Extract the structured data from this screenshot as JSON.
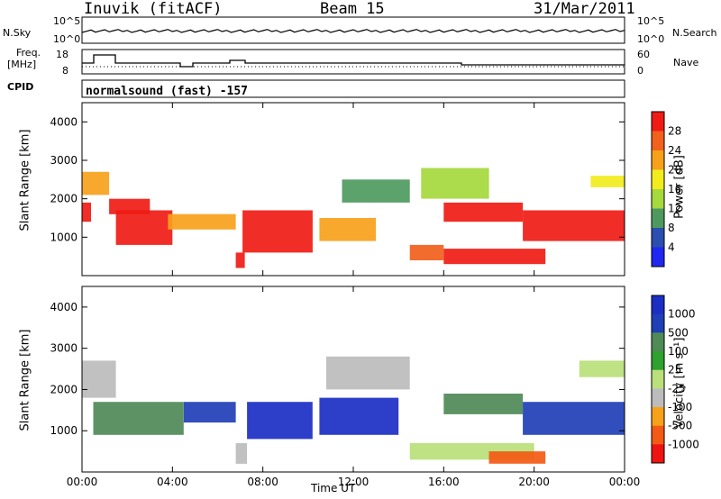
{
  "header": {
    "station": "Inuvik (fitACF)",
    "beam": "Beam 15",
    "date": "31/Mar/2011"
  },
  "top_panels": {
    "nsky_label": "N.Sky",
    "nsearch_label": "N.Search",
    "nsky_ticks": [
      "10^5",
      "10^0"
    ],
    "nsearch_ticks": [
      "10^5",
      "10^0"
    ],
    "freq_label": "Freq.",
    "freq_unit": "[MHz]",
    "freq_ticks": [
      "18",
      "8"
    ],
    "nave_label": "Nave",
    "nave_ticks": [
      "60",
      "0"
    ],
    "cpid_label": "CPID",
    "cpid_text": "normalsound (fast) -157"
  },
  "colors": {
    "power": [
      "#1e28f0",
      "#2a4fb0",
      "#4e9a5e",
      "#a5d93c",
      "#f2ec1e",
      "#f7a11a",
      "#f1601c",
      "#ef1b14"
    ],
    "velocity": [
      "#ee1411",
      "#f35a14",
      "#f7a11a",
      "#bcbcbc",
      "#b9e07a",
      "#2ea12e",
      "#4f8a57",
      "#1f3fb6",
      "#1b2fc4"
    ]
  },
  "chart_data": [
    {
      "type": "heatmap",
      "name": "power",
      "ylabel": "Slant Range [km]",
      "yticks": [
        "4000",
        "3000",
        "2000",
        "1000"
      ],
      "ylim": [
        0,
        4500
      ],
      "x": [
        "00:00",
        "04:00",
        "08:00",
        "12:00",
        "16:00",
        "20:00",
        "00:00"
      ],
      "colorbar_label": "Power [dB]",
      "colorbar_ticks": [
        "28",
        "24",
        "20",
        "16",
        "12",
        "8",
        "4"
      ],
      "regions": [
        {
          "t0": 0.0,
          "t1": 0.4,
          "r0": 1400,
          "r1": 1900,
          "level": 7
        },
        {
          "t0": 0.0,
          "t1": 1.2,
          "r0": 2100,
          "r1": 2700,
          "level": 5
        },
        {
          "t0": 1.2,
          "t1": 3.0,
          "r0": 1600,
          "r1": 2000,
          "level": 7
        },
        {
          "t0": 1.5,
          "t1": 4.0,
          "r0": 800,
          "r1": 1700,
          "level": 7
        },
        {
          "t0": 3.8,
          "t1": 6.8,
          "r0": 1200,
          "r1": 1600,
          "level": 5
        },
        {
          "t0": 6.8,
          "t1": 7.2,
          "r0": 200,
          "r1": 600,
          "level": 7
        },
        {
          "t0": 7.1,
          "t1": 10.2,
          "r0": 600,
          "r1": 1700,
          "level": 7
        },
        {
          "t0": 10.5,
          "t1": 13.0,
          "r0": 900,
          "r1": 1500,
          "level": 5
        },
        {
          "t0": 11.5,
          "t1": 14.5,
          "r0": 1900,
          "r1": 2500,
          "level": 2
        },
        {
          "t0": 14.5,
          "t1": 16.0,
          "r0": 400,
          "r1": 800,
          "level": 6
        },
        {
          "t0": 16.0,
          "t1": 20.5,
          "r0": 300,
          "r1": 700,
          "level": 7
        },
        {
          "t0": 16.0,
          "t1": 19.5,
          "r0": 1400,
          "r1": 1900,
          "level": 7
        },
        {
          "t0": 19.5,
          "t1": 24.0,
          "r0": 900,
          "r1": 1700,
          "level": 7
        },
        {
          "t0": 15.0,
          "t1": 18.0,
          "r0": 2000,
          "r1": 2800,
          "level": 3
        },
        {
          "t0": 22.5,
          "t1": 24.0,
          "r0": 2300,
          "r1": 2600,
          "level": 4
        }
      ]
    },
    {
      "type": "heatmap",
      "name": "velocity",
      "ylabel": "Slant Range [km]",
      "yticks": [
        "4000",
        "3000",
        "2000",
        "1000"
      ],
      "ylim": [
        0,
        4500
      ],
      "x": [
        "00:00",
        "04:00",
        "08:00",
        "12:00",
        "16:00",
        "20:00",
        "00:00"
      ],
      "xlabel": "Time UT",
      "colorbar_label": "Velocity [m s⁻¹]",
      "colorbar_ticks": [
        "1000",
        "500",
        "100",
        "25",
        "-25",
        "-100",
        "-500",
        "-1000"
      ],
      "regions": [
        {
          "t0": 0.0,
          "t1": 1.5,
          "r0": 1800,
          "r1": 2700,
          "level": 3
        },
        {
          "t0": 0.5,
          "t1": 4.5,
          "r0": 900,
          "r1": 1700,
          "level": 6
        },
        {
          "t0": 4.5,
          "t1": 6.8,
          "r0": 1200,
          "r1": 1700,
          "level": 7
        },
        {
          "t0": 6.8,
          "t1": 7.3,
          "r0": 200,
          "r1": 700,
          "level": 3
        },
        {
          "t0": 7.3,
          "t1": 10.2,
          "r0": 800,
          "r1": 1700,
          "level": 8
        },
        {
          "t0": 10.5,
          "t1": 14.0,
          "r0": 900,
          "r1": 1800,
          "level": 8
        },
        {
          "t0": 10.8,
          "t1": 14.5,
          "r0": 2000,
          "r1": 2800,
          "level": 3
        },
        {
          "t0": 14.5,
          "t1": 20.0,
          "r0": 300,
          "r1": 700,
          "level": 4
        },
        {
          "t0": 18.0,
          "t1": 20.5,
          "r0": 200,
          "r1": 500,
          "level": 1
        },
        {
          "t0": 16.0,
          "t1": 19.5,
          "r0": 1400,
          "r1": 1900,
          "level": 6
        },
        {
          "t0": 19.5,
          "t1": 24.0,
          "r0": 900,
          "r1": 1700,
          "level": 7
        },
        {
          "t0": 22.0,
          "t1": 24.0,
          "r0": 2300,
          "r1": 2700,
          "level": 4
        }
      ]
    }
  ]
}
